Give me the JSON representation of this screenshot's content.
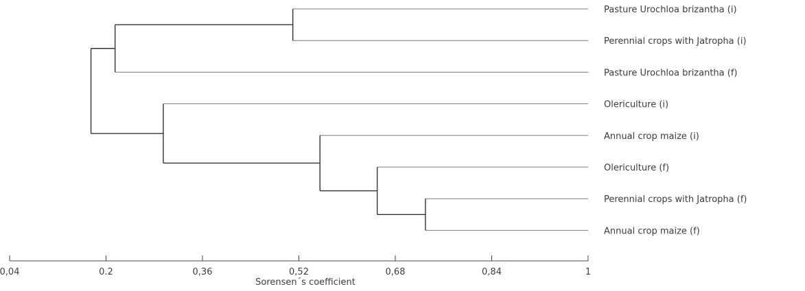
{
  "chart_data": {
    "type": "dendrogram",
    "xlabel": "Sorensen´s coefficient",
    "xlim": [
      0.04,
      1
    ],
    "ticks": [
      0.04,
      0.2,
      0.36,
      0.52,
      0.68,
      0.84,
      1
    ],
    "tick_labels": [
      "0,04",
      "0.2",
      "0,36",
      "0,52",
      "0,68",
      "0,84",
      "1"
    ],
    "leaves": [
      "Pasture Urochloa brizantha (i)",
      "Perennial crops with Jatropha (i)",
      "Pasture Urochloa brizantha (f)",
      "Olericulture (i)",
      "Annual crop maize (i)",
      "Olericulture (f)",
      "Perennial crops with Jatropha (f)",
      "Annual crop maize (f)"
    ],
    "merges": [
      {
        "a": 0,
        "b": 1,
        "height": 0.51
      },
      {
        "a": 6,
        "b": 7,
        "height": 0.73
      },
      {
        "a": 5,
        "b": 9,
        "height": 0.65
      },
      {
        "a": 4,
        "b": 10,
        "height": 0.555
      },
      {
        "a": 3,
        "b": 11,
        "height": 0.295
      },
      {
        "a": 8,
        "b": 2,
        "height": 0.215
      },
      {
        "a": 13,
        "b": 12,
        "height": 0.175
      }
    ],
    "colors": {
      "line": "#333333",
      "leaf_line": "#7a7a7a",
      "axis": "#444444"
    }
  }
}
